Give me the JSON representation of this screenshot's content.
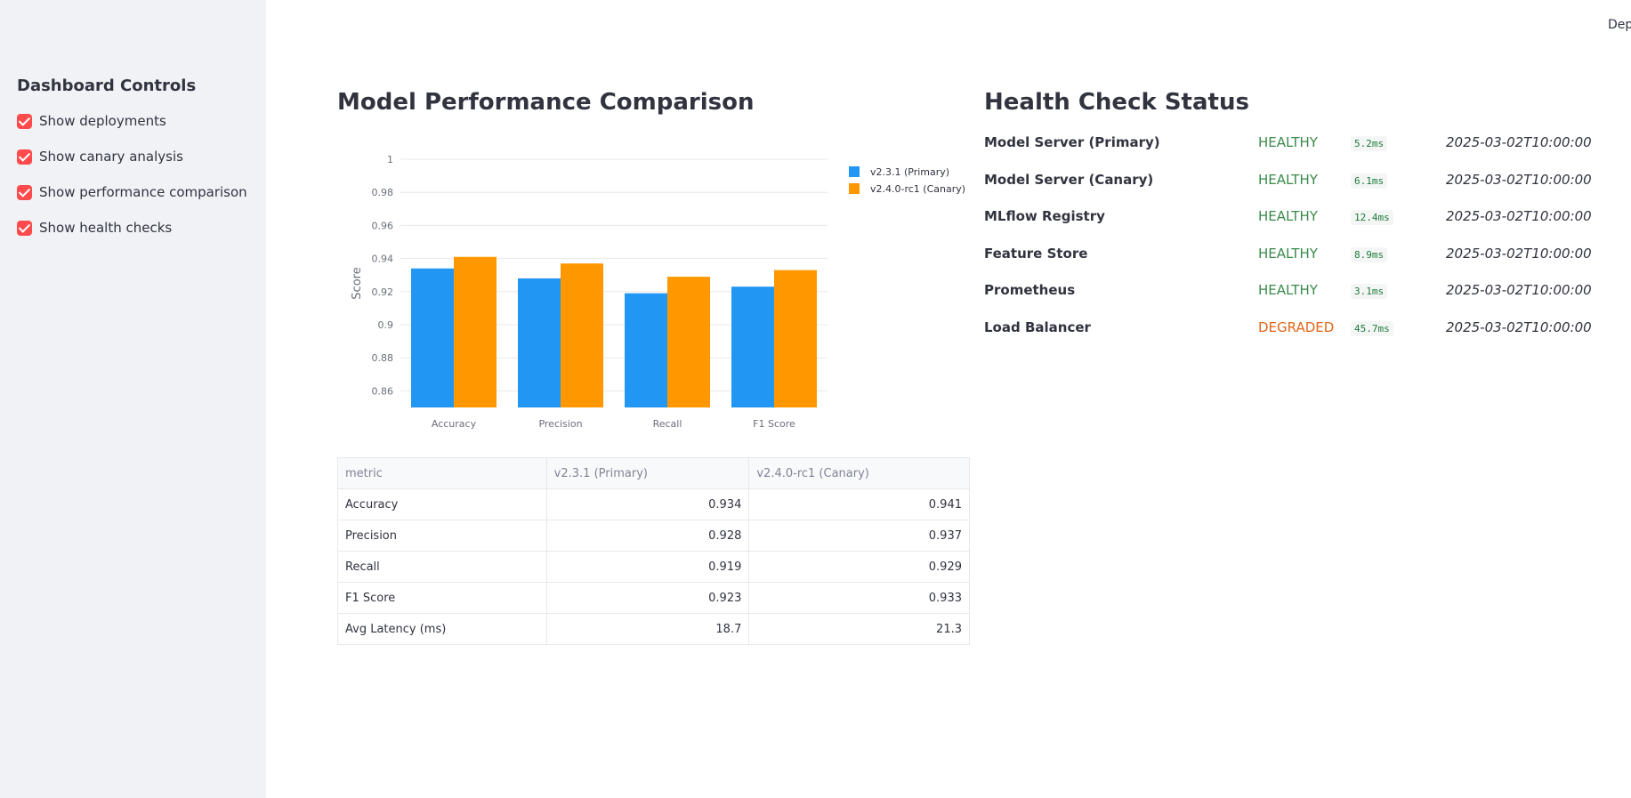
{
  "sidebar": {
    "title": "Dashboard Controls",
    "controls": [
      "Show deployments",
      "Show canary analysis",
      "Show performance comparison",
      "Show health checks"
    ]
  },
  "header": {
    "menu_text": "Depl"
  },
  "performance": {
    "title": "Model Performance Comparison",
    "table": {
      "columns": [
        "metric",
        "v2.3.1 (Primary)",
        "v2.4.0-rc1 (Canary)"
      ],
      "rows": [
        [
          "Accuracy",
          0.934,
          0.941
        ],
        [
          "Precision",
          0.928,
          0.937
        ],
        [
          "Recall",
          0.919,
          0.929
        ],
        [
          "F1 Score",
          0.923,
          0.933
        ],
        [
          "Avg Latency (ms)",
          18.7,
          21.3
        ]
      ]
    }
  },
  "chart_data": {
    "type": "bar",
    "y_label": "Score",
    "categories": [
      "Accuracy",
      "Precision",
      "Recall",
      "F1 Score"
    ],
    "series": [
      {
        "name": "v2.3.1 (Primary)",
        "color": "#2196f3",
        "values": [
          0.934,
          0.928,
          0.919,
          0.923
        ]
      },
      {
        "name": "v2.4.0-rc1 (Canary)",
        "color": "#ff9800",
        "values": [
          0.941,
          0.937,
          0.929,
          0.933
        ]
      }
    ],
    "ylim": [
      0.85,
      1.0
    ],
    "yticks": [
      0.86,
      0.88,
      0.9,
      0.92,
      0.94,
      0.96,
      0.98,
      1
    ],
    "grid": true,
    "legend": "top-right"
  },
  "health": {
    "title": "Health Check Status",
    "rows": [
      {
        "service": "Model Server (Primary)",
        "status": "HEALTHY",
        "status_color": "#3a8a4a",
        "latency": "5.2ms",
        "checked": "2025-03-02T10:00:00"
      },
      {
        "service": "Model Server (Canary)",
        "status": "HEALTHY",
        "status_color": "#3a8a4a",
        "latency": "6.1ms",
        "checked": "2025-03-02T10:00:00"
      },
      {
        "service": "MLflow Registry",
        "status": "HEALTHY",
        "status_color": "#3a8a4a",
        "latency": "12.4ms",
        "checked": "2025-03-02T10:00:00"
      },
      {
        "service": "Feature Store",
        "status": "HEALTHY",
        "status_color": "#3a8a4a",
        "latency": "8.9ms",
        "checked": "2025-03-02T10:00:00"
      },
      {
        "service": "Prometheus",
        "status": "HEALTHY",
        "status_color": "#3a8a4a",
        "latency": "3.1ms",
        "checked": "2025-03-02T10:00:00"
      },
      {
        "service": "Load Balancer",
        "status": "DEGRADED",
        "status_color": "#e0661a",
        "latency": "45.7ms",
        "checked": "2025-03-02T10:00:00"
      }
    ]
  }
}
